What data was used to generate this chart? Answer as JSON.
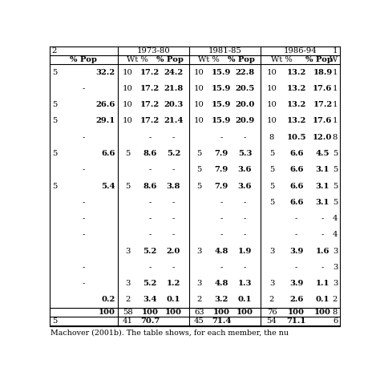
{
  "period_headers": [
    "1973-80",
    "1981-85",
    "1986-94",
    "1"
  ],
  "left_header": "2",
  "subheaders_left": "% Pop",
  "subheaders_period": [
    "Wt %",
    "% Pop"
  ],
  "subheader_last": "W",
  "rows": [
    [
      "5",
      "32.2",
      "10",
      "17.2",
      "24.2",
      "10",
      "15.9",
      "22.8",
      "10",
      "13.2",
      "18.9",
      "1"
    ],
    [
      "-",
      "",
      "10",
      "17.2",
      "21.8",
      "10",
      "15.9",
      "20.5",
      "10",
      "13.2",
      "17.6",
      "1"
    ],
    [
      "5",
      "26.6",
      "10",
      "17.2",
      "20.3",
      "10",
      "15.9",
      "20.0",
      "10",
      "13.2",
      "17.2",
      "1"
    ],
    [
      "5",
      "29.1",
      "10",
      "17.2",
      "21.4",
      "10",
      "15.9",
      "20.9",
      "10",
      "13.2",
      "17.6",
      "1"
    ],
    [
      "-",
      "",
      "",
      "-",
      "-",
      "",
      "-",
      "-",
      "8",
      "10.5",
      "12.0",
      "8"
    ],
    [
      "5",
      "6.6",
      "5",
      "8.6",
      "5.2",
      "5",
      "7.9",
      "5.3",
      "5",
      "6.6",
      "4.5",
      "5"
    ],
    [
      "-",
      "",
      "",
      "-",
      "-",
      "5",
      "7.9",
      "3.6",
      "5",
      "6.6",
      "3.1",
      "5"
    ],
    [
      "5",
      "5.4",
      "5",
      "8.6",
      "3.8",
      "5",
      "7.9",
      "3.6",
      "5",
      "6.6",
      "3.1",
      "5"
    ],
    [
      "-",
      "",
      "",
      "-",
      "-",
      "",
      "-",
      "-",
      "5",
      "6.6",
      "3.1",
      "5"
    ],
    [
      "-",
      "",
      "",
      "-",
      "-",
      "",
      "-",
      "-",
      "",
      "-",
      "-",
      "4"
    ],
    [
      "-",
      "",
      "",
      "-",
      "-",
      "",
      "-",
      "-",
      "",
      "-",
      "-",
      "4"
    ],
    [
      "",
      "",
      "3",
      "5.2",
      "2.0",
      "3",
      "4.8",
      "1.9",
      "3",
      "3.9",
      "1.6",
      "3"
    ],
    [
      "-",
      "",
      "",
      "-",
      "-",
      "",
      "-",
      "-",
      "",
      "-",
      "-",
      "3"
    ],
    [
      "-",
      "",
      "3",
      "5.2",
      "1.2",
      "3",
      "4.8",
      "1.3",
      "3",
      "3.9",
      "1.1",
      "3"
    ],
    [
      "",
      "0.2",
      "2",
      "3.4",
      "0.1",
      "2",
      "3.2",
      "0.1",
      "2",
      "2.6",
      "0.1",
      "2"
    ]
  ],
  "total_row": [
    "",
    "100",
    "58",
    "100",
    "100",
    "63",
    "100",
    "100",
    "76",
    "100",
    "100",
    "8"
  ],
  "qmv_row": [
    "5",
    "",
    "41",
    "70.7",
    "",
    "45",
    "71.4",
    "",
    "54",
    "71.1",
    "",
    "6"
  ],
  "caption": "Machover (2001b). The table shows, for each member, the nu",
  "background_color": "#ffffff",
  "line_color": "#000000",
  "font_size": 7.2,
  "header_font_size": 7.2
}
